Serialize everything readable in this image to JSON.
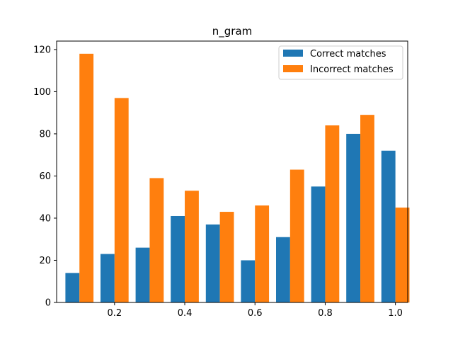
{
  "chart_data": {
    "type": "bar",
    "title": "n_gram",
    "xlabel": "",
    "ylabel": "",
    "bin_centers": [
      0.1,
      0.2,
      0.3,
      0.4,
      0.5,
      0.6,
      0.7,
      0.8,
      0.9,
      1.0
    ],
    "series": [
      {
        "name": "Correct matches",
        "color": "#1f77b4",
        "values": [
          14,
          23,
          26,
          41,
          37,
          20,
          31,
          55,
          80,
          72
        ]
      },
      {
        "name": "Incorrect matches",
        "color": "#ff7f0e",
        "values": [
          118,
          97,
          59,
          53,
          43,
          46,
          63,
          84,
          89,
          45
        ]
      }
    ],
    "xlim": [
      0.035,
      1.035
    ],
    "ylim": [
      0,
      124
    ],
    "x_ticks": [
      "0.2",
      "0.4",
      "0.6",
      "0.8",
      "1.0"
    ],
    "y_ticks": [
      "0",
      "20",
      "40",
      "60",
      "80",
      "100",
      "120"
    ],
    "grid": false,
    "legend_position": "top-right"
  }
}
